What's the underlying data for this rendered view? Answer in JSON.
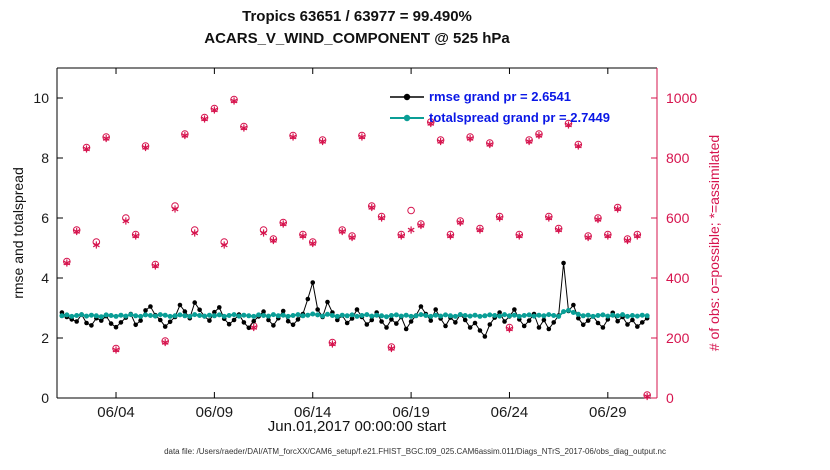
{
  "chart_data": {
    "type": "line",
    "title": "Tropics 63651 / 63977 = 99.490%",
    "subtitle": "ACARS_V_WIND_COMPONENT @ 525 hPa",
    "xlabel": "Jun.01,2017 00:00:00 start",
    "ylabel_left": "rmse and totalspread",
    "ylabel_right": "# of obs: o=possible; *=assimilated",
    "footnote": "data file: /Users/raeder/DAI/ATM_forcXX/CAM6_setup/f.e21.FHIST_BGC.f09_025.CAM6assim.011/Diags_NTrS_2017-06/obs_diag_output.nc",
    "grid": false,
    "xlim_days": [
      0,
      30.5
    ],
    "ylim_left": [
      0,
      11
    ],
    "ylim_right": [
      0,
      1100
    ],
    "xticks": {
      "positions_days": [
        3,
        8,
        13,
        18,
        23,
        28
      ],
      "labels": [
        "06/04",
        "06/09",
        "06/14",
        "06/19",
        "06/24",
        "06/29"
      ]
    },
    "yticks_left": [
      0,
      2,
      4,
      6,
      8,
      10
    ],
    "yticks_right": [
      0,
      200,
      400,
      600,
      800,
      1000
    ],
    "colors": {
      "crimson": "#d6144e",
      "teal": "#0a9e96",
      "black": "#000000",
      "legend_text": "#0a17e6"
    },
    "legend": {
      "position": "top-center-inside",
      "entries": [
        {
          "label": "rmse grand pr = 2.6541",
          "color": "#000000",
          "marker": "filled-circle"
        },
        {
          "label": "totalspread grand pr = 2.7449",
          "color": "#0a9e96",
          "marker": "filled-circle"
        }
      ]
    },
    "series": [
      {
        "name": "rmse",
        "axis": "left",
        "type": "line+marker",
        "color": "#000000",
        "x_start_day": 0.25,
        "x_step_days": 0.25,
        "values": [
          2.85,
          2.7,
          2.62,
          2.55,
          2.78,
          2.5,
          2.42,
          2.66,
          2.58,
          2.73,
          2.48,
          2.36,
          2.52,
          2.68,
          2.8,
          2.44,
          2.58,
          2.92,
          3.05,
          2.76,
          2.6,
          2.38,
          2.54,
          2.7,
          3.1,
          2.88,
          2.66,
          3.18,
          2.94,
          2.72,
          2.58,
          2.86,
          3.02,
          2.64,
          2.46,
          2.6,
          2.78,
          2.52,
          2.34,
          2.56,
          2.72,
          2.88,
          2.6,
          2.42,
          2.66,
          2.9,
          2.56,
          2.44,
          2.62,
          2.8,
          3.3,
          3.85,
          2.95,
          2.7,
          3.2,
          2.85,
          2.6,
          2.75,
          2.5,
          2.65,
          2.95,
          2.7,
          2.45,
          2.6,
          2.85,
          2.55,
          2.35,
          2.62,
          2.48,
          2.7,
          2.3,
          2.55,
          2.75,
          3.05,
          2.8,
          2.58,
          2.95,
          2.65,
          2.4,
          2.68,
          2.52,
          2.78,
          2.6,
          2.35,
          2.5,
          2.25,
          2.05,
          2.45,
          2.68,
          2.85,
          2.55,
          2.72,
          2.95,
          2.62,
          2.4,
          2.58,
          2.8,
          2.35,
          2.6,
          2.3,
          2.52,
          2.75,
          4.5,
          2.9,
          3.1,
          2.66,
          2.44,
          2.58,
          2.72,
          2.5,
          2.35,
          2.62,
          2.84,
          2.56,
          2.7,
          2.45,
          2.6,
          2.38,
          2.52,
          2.66
        ]
      },
      {
        "name": "totalspread",
        "axis": "left",
        "type": "line+marker",
        "color": "#0a9e96",
        "x_start_day": 0.25,
        "x_step_days": 0.25,
        "values": [
          2.74,
          2.77,
          2.72,
          2.75,
          2.78,
          2.73,
          2.76,
          2.74,
          2.71,
          2.77,
          2.75,
          2.72,
          2.76,
          2.73,
          2.78,
          2.74,
          2.72,
          2.77,
          2.75,
          2.73,
          2.78,
          2.76,
          2.72,
          2.74,
          2.77,
          2.74,
          2.72,
          2.78,
          2.75,
          2.73,
          2.76,
          2.74,
          2.77,
          2.72,
          2.75,
          2.78,
          2.73,
          2.76,
          2.74,
          2.72,
          2.77,
          2.75,
          2.73,
          2.78,
          2.74,
          2.76,
          2.72,
          2.75,
          2.78,
          2.74,
          2.76,
          2.8,
          2.77,
          2.73,
          2.79,
          2.75,
          2.72,
          2.76,
          2.74,
          2.77,
          2.72,
          2.75,
          2.78,
          2.73,
          2.76,
          2.74,
          2.71,
          2.75,
          2.77,
          2.73,
          2.76,
          2.72,
          2.74,
          2.78,
          2.75,
          2.72,
          2.76,
          2.73,
          2.77,
          2.74,
          2.72,
          2.78,
          2.75,
          2.73,
          2.76,
          2.72,
          2.74,
          2.77,
          2.75,
          2.73,
          2.78,
          2.74,
          2.76,
          2.72,
          2.75,
          2.77,
          2.73,
          2.76,
          2.74,
          2.78,
          2.75,
          2.72,
          2.88,
          2.92,
          2.85,
          2.79,
          2.74,
          2.76,
          2.72,
          2.75,
          2.77,
          2.73,
          2.76,
          2.74,
          2.78,
          2.72,
          2.75,
          2.73,
          2.76,
          2.74
        ]
      },
      {
        "name": "obs_possible",
        "axis": "right",
        "type": "scatter",
        "marker": "open-circle",
        "color": "#d6144e",
        "x_start_day": 0.5,
        "x_step_days": 0.5,
        "values": [
          455,
          560,
          835,
          520,
          870,
          165,
          600,
          545,
          840,
          445,
          190,
          640,
          880,
          560,
          935,
          965,
          520,
          995,
          905,
          240,
          560,
          530,
          585,
          875,
          545,
          520,
          860,
          185,
          560,
          540,
          875,
          640,
          605,
          170,
          545,
          625,
          580,
          920,
          860,
          545,
          590,
          870,
          565,
          850,
          605,
          235,
          545,
          860,
          880,
          605,
          565,
          915,
          845,
          540,
          600,
          545,
          635,
          530,
          545,
          10
        ]
      },
      {
        "name": "obs_assimilated",
        "axis": "right",
        "type": "scatter",
        "marker": "asterisk",
        "color": "#d6144e",
        "x_start_day": 0.5,
        "x_step_days": 0.5,
        "values": [
          450,
          555,
          830,
          510,
          865,
          160,
          590,
          540,
          835,
          440,
          185,
          630,
          875,
          550,
          930,
          960,
          510,
          990,
          900,
          235,
          550,
          525,
          580,
          870,
          540,
          515,
          855,
          180,
          555,
          535,
          870,
          635,
          600,
          165,
          540,
          560,
          575,
          915,
          855,
          540,
          585,
          865,
          560,
          845,
          600,
          230,
          540,
          855,
          875,
          600,
          560,
          910,
          840,
          535,
          595,
          540,
          630,
          525,
          540,
          5
        ]
      }
    ]
  }
}
